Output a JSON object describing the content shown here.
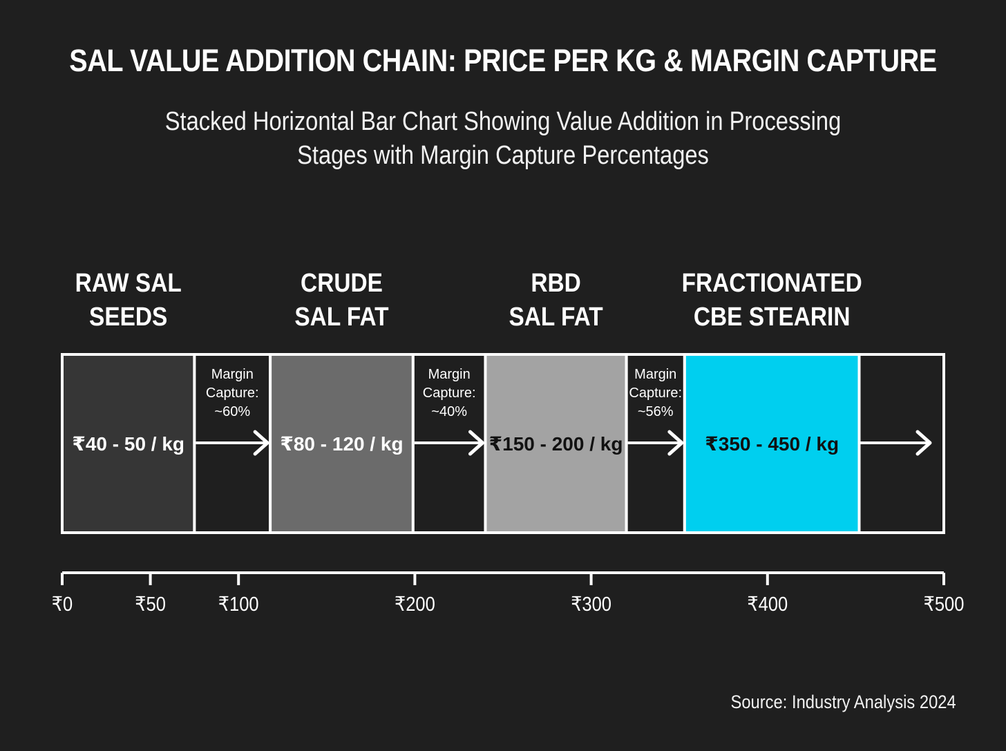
{
  "chart_data": {
    "type": "bar",
    "subtype": "stacked-horizontal",
    "title": "SAL VALUE ADDITION CHAIN: PRICE PER KG & MARGIN CAPTURE",
    "subtitle_lines": [
      "Stacked Horizontal Bar Chart Showing Value Addition in Processing",
      "Stages with Margin Capture Percentages"
    ],
    "xlabel": "",
    "ylabel": "",
    "xlim": [
      0,
      500
    ],
    "x_ticks": [
      0,
      50,
      100,
      200,
      300,
      400,
      500
    ],
    "x_tick_labels": [
      "₹0",
      "₹50",
      "₹100",
      "₹200",
      "₹300",
      "₹400",
      "₹500"
    ],
    "grid": false,
    "legend": "none",
    "segments": [
      {
        "kind": "stage",
        "name_lines": [
          "RAW SAL",
          "SEEDS"
        ],
        "price_label": "₹40 - 50 / kg",
        "price_min": 40,
        "price_max": 50,
        "start": 0,
        "end": 75,
        "color": "#363636",
        "text_color": "#ffffff"
      },
      {
        "kind": "margin",
        "label_lines": [
          "Margin",
          "Capture:",
          "~60%"
        ],
        "margin_pct": 60,
        "start": 75,
        "end": 118,
        "color": "#1f1f1f"
      },
      {
        "kind": "stage",
        "name_lines": [
          "CRUDE",
          "SAL FAT"
        ],
        "price_label": "₹80 - 120 / kg",
        "price_min": 80,
        "price_max": 120,
        "start": 118,
        "end": 199,
        "color": "#6b6b6b",
        "text_color": "#ffffff"
      },
      {
        "kind": "margin",
        "label_lines": [
          "Margin",
          "Capture:",
          "~40%"
        ],
        "margin_pct": 40,
        "start": 199,
        "end": 240,
        "color": "#1f1f1f"
      },
      {
        "kind": "stage",
        "name_lines": [
          "RBD",
          "SAL FAT"
        ],
        "price_label": "₹150 - 200 / kg",
        "price_min": 150,
        "price_max": 200,
        "start": 240,
        "end": 320,
        "color": "#a3a3a3",
        "text_color": "#111111"
      },
      {
        "kind": "margin",
        "label_lines": [
          "Margin",
          "Capture:",
          "~56%"
        ],
        "margin_pct": 56,
        "start": 320,
        "end": 353,
        "color": "#1f1f1f"
      },
      {
        "kind": "stage",
        "name_lines": [
          "FRACTIONATED",
          "CBE STEARIN"
        ],
        "price_label": "₹350 - 450 / kg",
        "price_min": 350,
        "price_max": 450,
        "start": 353,
        "end": 452,
        "color": "#00cfef",
        "text_color": "#111111"
      },
      {
        "kind": "tail",
        "start": 452,
        "end": 500,
        "color": "#1f1f1f"
      }
    ],
    "source": "Source: Industry Analysis 2024"
  },
  "colors": {
    "background": "#1f1f1f",
    "outline": "#ffffff",
    "accent": "#00cfef"
  }
}
